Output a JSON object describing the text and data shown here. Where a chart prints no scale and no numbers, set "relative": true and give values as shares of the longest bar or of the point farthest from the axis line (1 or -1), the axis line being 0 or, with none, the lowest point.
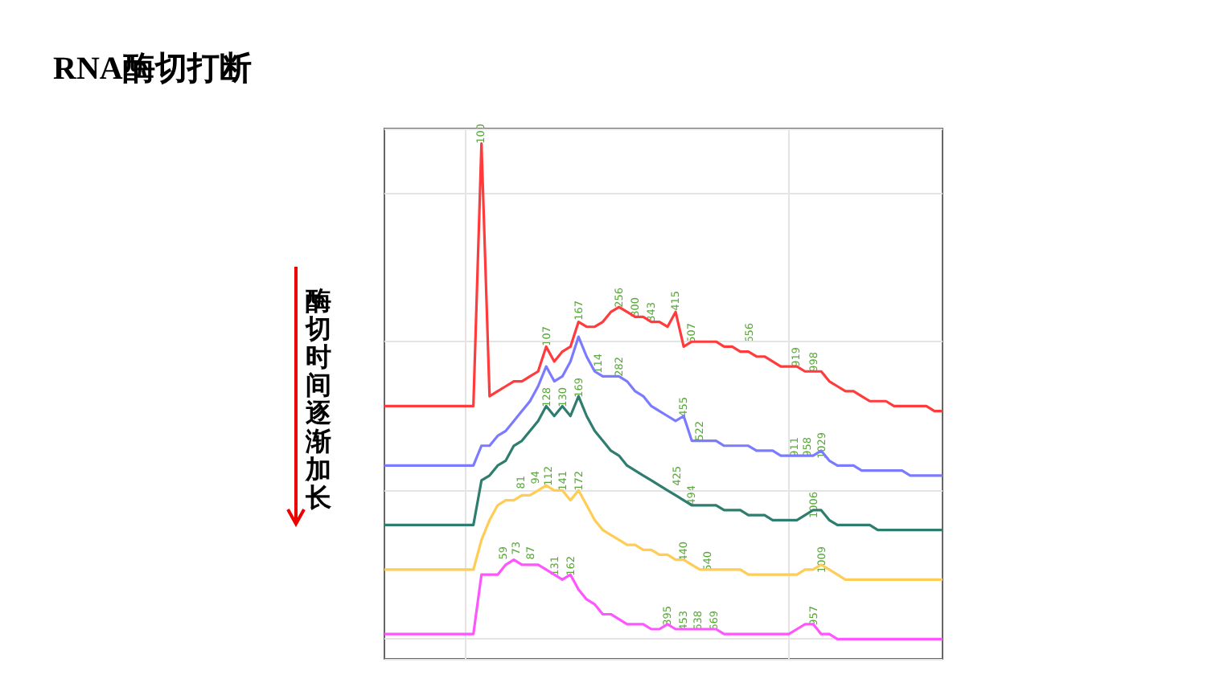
{
  "chart_data": {
    "type": "line",
    "title": "RNA酶切打断",
    "relative": true,
    "grid": true,
    "categories": [
      null,
      null,
      null,
      null,
      null,
      null,
      null,
      null,
      null,
      null,
      null,
      null,
      null,
      null,
      null,
      null,
      null,
      null,
      null,
      null,
      null,
      null,
      null,
      null,
      null,
      null,
      null,
      null,
      null,
      null,
      null,
      null,
      null,
      null,
      null,
      null,
      null,
      null,
      null,
      null,
      null,
      null,
      null,
      null,
      null,
      null,
      null,
      null,
      null,
      null,
      null,
      null,
      null,
      null,
      null,
      null,
      null,
      null,
      null,
      null,
      null,
      null,
      null,
      null,
      null,
      null,
      null,
      null,
      null,
      null
    ],
    "annotations": [
      "酶切时间逐渐加长",
      "100",
      "107",
      "167",
      "256",
      "300",
      "343",
      "415",
      "507",
      "656",
      "919",
      "998",
      "114",
      "282",
      "455",
      "522",
      "911",
      "958",
      "1029",
      "128",
      "130",
      "169",
      "425",
      "494",
      "1006",
      "81",
      "94",
      "112",
      "141",
      "172",
      "440",
      "540",
      "1009",
      "59",
      "73",
      "87",
      "131",
      "162",
      "395",
      "453",
      "638",
      "669",
      "957"
    ],
    "series": [
      {
        "color": "#ff3b3b",
        "values": [
          0.47,
          0.47,
          0.47,
          0.47,
          0.47,
          0.47,
          0.47,
          0.47,
          0.47,
          0.47,
          0.47,
          0.47,
          1.0,
          0.49,
          0.5,
          0.51,
          0.52,
          0.52,
          0.53,
          0.54,
          0.59,
          0.56,
          0.58,
          0.59,
          0.64,
          0.63,
          0.63,
          0.64,
          0.66,
          0.67,
          0.66,
          0.65,
          0.65,
          0.64,
          0.64,
          0.63,
          0.66,
          0.59,
          0.6,
          0.6,
          0.6,
          0.6,
          0.59,
          0.59,
          0.58,
          0.58,
          0.57,
          0.57,
          0.56,
          0.55,
          0.55,
          0.55,
          0.54,
          0.54,
          0.54,
          0.52,
          0.51,
          0.5,
          0.5,
          0.49,
          0.48,
          0.48,
          0.48,
          0.47,
          0.47,
          0.47,
          0.47,
          0.47,
          0.46,
          0.46
        ]
      },
      {
        "color": "#7b7bff",
        "values": [
          0.35,
          0.35,
          0.35,
          0.35,
          0.35,
          0.35,
          0.35,
          0.35,
          0.35,
          0.35,
          0.35,
          0.35,
          0.39,
          0.39,
          0.41,
          0.42,
          0.44,
          0.46,
          0.48,
          0.51,
          0.55,
          0.52,
          0.53,
          0.56,
          0.61,
          0.57,
          0.54,
          0.53,
          0.53,
          0.53,
          0.52,
          0.5,
          0.49,
          0.47,
          0.46,
          0.45,
          0.44,
          0.45,
          0.4,
          0.4,
          0.4,
          0.4,
          0.39,
          0.39,
          0.39,
          0.39,
          0.38,
          0.38,
          0.38,
          0.37,
          0.37,
          0.37,
          0.37,
          0.37,
          0.38,
          0.36,
          0.35,
          0.35,
          0.35,
          0.34,
          0.34,
          0.34,
          0.34,
          0.34,
          0.34,
          0.33,
          0.33,
          0.33,
          0.33,
          0.33
        ]
      },
      {
        "color": "#2e7d6e",
        "values": [
          0.23,
          0.23,
          0.23,
          0.23,
          0.23,
          0.23,
          0.23,
          0.23,
          0.23,
          0.23,
          0.23,
          0.23,
          0.32,
          0.33,
          0.35,
          0.36,
          0.39,
          0.4,
          0.42,
          0.44,
          0.47,
          0.45,
          0.47,
          0.45,
          0.49,
          0.45,
          0.42,
          0.4,
          0.38,
          0.37,
          0.35,
          0.34,
          0.33,
          0.32,
          0.31,
          0.3,
          0.29,
          0.28,
          0.27,
          0.27,
          0.27,
          0.27,
          0.26,
          0.26,
          0.26,
          0.25,
          0.25,
          0.25,
          0.24,
          0.24,
          0.24,
          0.24,
          0.25,
          0.26,
          0.26,
          0.24,
          0.23,
          0.23,
          0.23,
          0.23,
          0.23,
          0.22,
          0.22,
          0.22,
          0.22,
          0.22,
          0.22,
          0.22,
          0.22,
          0.22
        ]
      },
      {
        "color": "#ffcc55",
        "values": [
          0.14,
          0.14,
          0.14,
          0.14,
          0.14,
          0.14,
          0.14,
          0.14,
          0.14,
          0.14,
          0.14,
          0.14,
          0.2,
          0.24,
          0.27,
          0.28,
          0.28,
          0.29,
          0.29,
          0.3,
          0.31,
          0.3,
          0.3,
          0.28,
          0.3,
          0.27,
          0.24,
          0.22,
          0.21,
          0.2,
          0.19,
          0.19,
          0.18,
          0.18,
          0.17,
          0.17,
          0.16,
          0.16,
          0.15,
          0.14,
          0.14,
          0.14,
          0.14,
          0.14,
          0.14,
          0.13,
          0.13,
          0.13,
          0.13,
          0.13,
          0.13,
          0.13,
          0.14,
          0.14,
          0.15,
          0.14,
          0.13,
          0.12,
          0.12,
          0.12,
          0.12,
          0.12,
          0.12,
          0.12,
          0.12,
          0.12,
          0.12,
          0.12,
          0.12,
          0.12
        ]
      },
      {
        "color": "#ff55ff",
        "values": [
          0.01,
          0.01,
          0.01,
          0.01,
          0.01,
          0.01,
          0.01,
          0.01,
          0.01,
          0.01,
          0.01,
          0.01,
          0.13,
          0.13,
          0.13,
          0.15,
          0.16,
          0.15,
          0.15,
          0.15,
          0.14,
          0.13,
          0.12,
          0.13,
          0.1,
          0.08,
          0.07,
          0.05,
          0.05,
          0.04,
          0.03,
          0.03,
          0.03,
          0.02,
          0.02,
          0.03,
          0.02,
          0.02,
          0.02,
          0.02,
          0.02,
          0.02,
          0.01,
          0.01,
          0.01,
          0.01,
          0.01,
          0.01,
          0.01,
          0.01,
          0.01,
          0.02,
          0.03,
          0.03,
          0.01,
          0.01,
          0,
          0,
          0,
          0,
          0,
          0,
          0,
          0,
          0,
          0,
          0,
          0,
          0,
          0
        ]
      }
    ]
  }
}
